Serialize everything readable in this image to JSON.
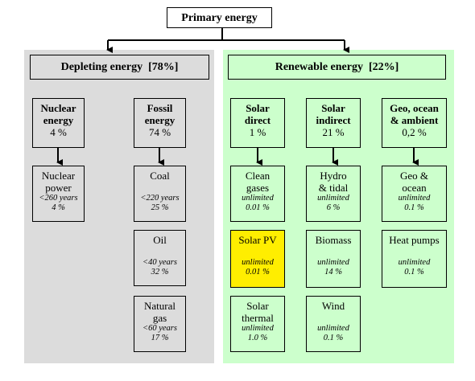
{
  "title": "Primary energy",
  "depleting": {
    "label": "Depleting energy",
    "share": "[78%]",
    "nuclear": {
      "name_line1": "Nuclear",
      "name_line2": "energy",
      "percent": "4 %"
    },
    "fossil": {
      "name_line1": "Fossil",
      "name_line2": "energy",
      "percent": "74 %"
    },
    "nuclear_power": {
      "name_line1": "Nuclear",
      "name_line2": "power",
      "years": "<260 years",
      "share": "4 %"
    },
    "coal": {
      "name": "Coal",
      "years": "<220 years",
      "share": "25 %"
    },
    "oil": {
      "name": "Oil",
      "years": "<40 years",
      "share": "32 %"
    },
    "natural_gas": {
      "name_line1": "Natural",
      "name_line2": "gas",
      "years": "<60 years",
      "share": "17 %"
    }
  },
  "renewable": {
    "label": "Renewable energy",
    "share": "[22%]",
    "solar_direct": {
      "name_line1": "Solar",
      "name_line2": "direct",
      "percent": "1 %"
    },
    "solar_indirect": {
      "name_line1": "Solar",
      "name_line2": "indirect",
      "percent": "21 %"
    },
    "geo": {
      "name_line1": "Geo, ocean",
      "name_line2": "& ambient",
      "percent": "0,2 %"
    },
    "clean_gases": {
      "name_line1": "Clean",
      "name_line2": "gases",
      "availability": "unlimited",
      "share": "0.01 %"
    },
    "solar_pv": {
      "name": "Solar PV",
      "availability": "unlimited",
      "share": "0.01 %"
    },
    "solar_thermal": {
      "name_line1": "Solar",
      "name_line2": "thermal",
      "availability": "unlimited",
      "share": "1.0 %"
    },
    "hydro_tidal": {
      "name_line1": "Hydro",
      "name_line2": "& tidal",
      "availability": "unlimited",
      "share": "6 %"
    },
    "biomass": {
      "name": "Biomass",
      "availability": "unlimited",
      "share": "14 %"
    },
    "wind": {
      "name": "Wind",
      "availability": "unlimited",
      "share": "0.1 %"
    },
    "geo_ocean": {
      "name_line1": "Geo &",
      "name_line2": "ocean",
      "availability": "unlimited",
      "share": "0.1 %"
    },
    "heat_pumps": {
      "name": "Heat pumps",
      "availability": "unlimited",
      "share": "0.1 %"
    }
  },
  "colors": {
    "depleting_panel": "#dcdcdc",
    "renewable_panel": "#ccffcc",
    "highlight": "#ffee00"
  }
}
